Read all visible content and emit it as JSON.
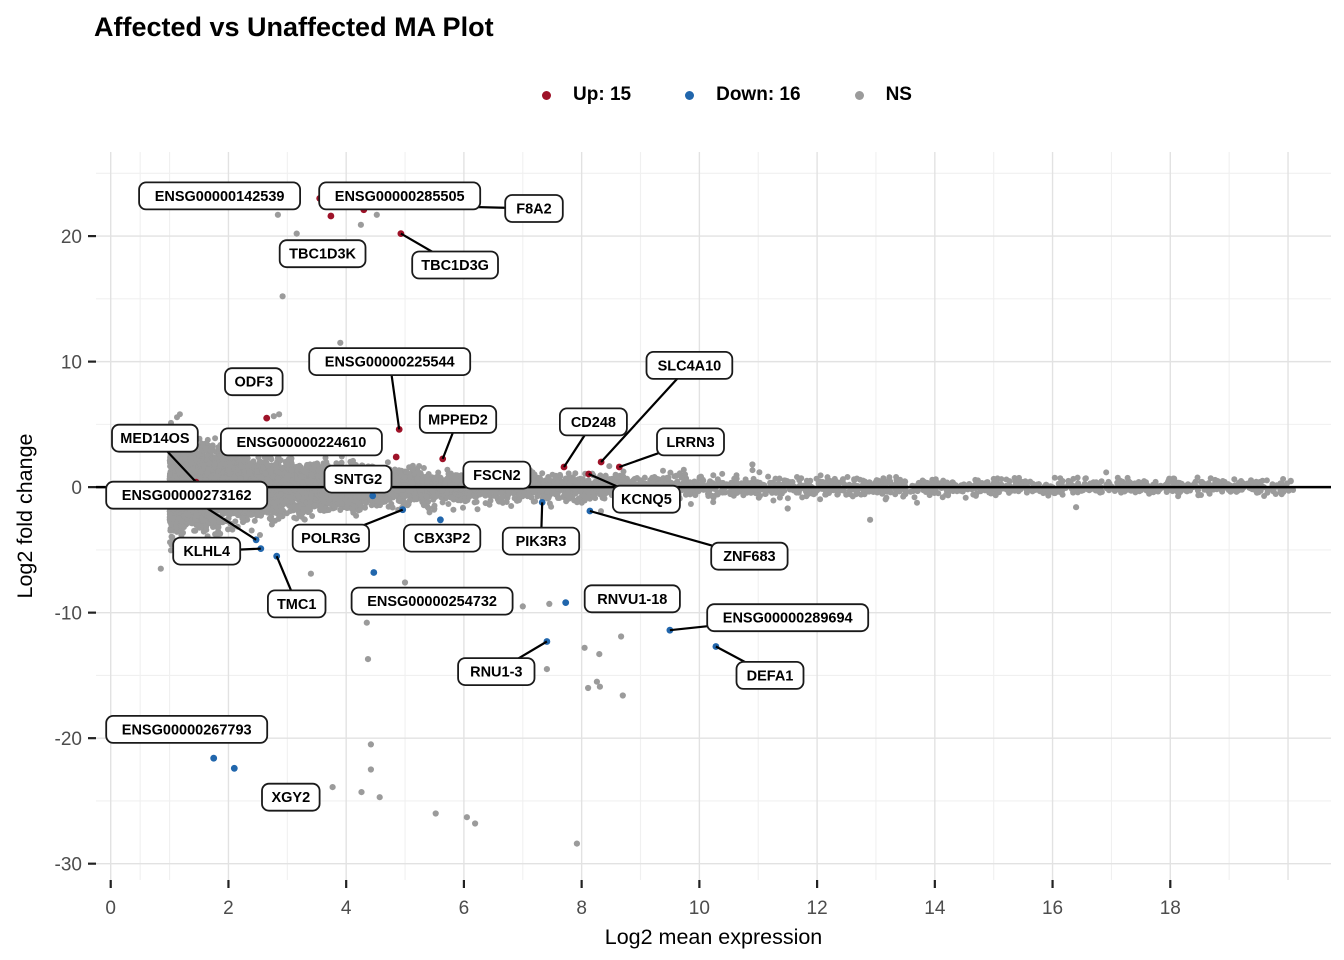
{
  "title": "Affected vs Unaffected MA Plot",
  "legend": {
    "items": [
      {
        "label": "Up: 15",
        "color": "#9E1228"
      },
      {
        "label": "Down: 16",
        "color": "#2166AC"
      },
      {
        "label": "NS",
        "color": "#9B9B9B"
      }
    ]
  },
  "chart_data": {
    "type": "scatter",
    "title": "Affected vs Unaffected MA Plot",
    "xlabel": "Log2 mean expression",
    "ylabel": "Log2 fold change",
    "x_ticks": [
      0,
      2,
      4,
      6,
      8,
      10,
      12,
      14,
      16,
      18
    ],
    "y_ticks": [
      -30,
      -20,
      -10,
      0,
      10,
      20
    ],
    "x_range": [
      -0.25,
      20.73
    ],
    "y_range": [
      -31.3,
      26.7
    ],
    "grid_on": true,
    "legend_position": "top",
    "zero_line_y": 0,
    "point_colors": {
      "up": "#9E1228",
      "down": "#2166AC",
      "ns": "#9B9B9B"
    },
    "labeled_genes": [
      {
        "name": "ENSG00000142539",
        "x": 3.55,
        "y": 23.0,
        "status": "up",
        "label_x": 1.85,
        "label_y": 23.2,
        "leader": false
      },
      {
        "name": "ENSG00000285505",
        "x": 4.3,
        "y": 22.1,
        "status": "up",
        "label_x": 4.91,
        "label_y": 23.2,
        "leader": false
      },
      {
        "name": "F8A2",
        "x": 5.0,
        "y": 22.45,
        "status": "up",
        "label_x": 7.19,
        "label_y": 22.2,
        "leader": true
      },
      {
        "name": "TBC1D3K",
        "x": 3.74,
        "y": 21.6,
        "status": "up",
        "label_x": 3.6,
        "label_y": 18.6,
        "leader": false
      },
      {
        "name": "TBC1D3G",
        "x": 4.93,
        "y": 20.2,
        "status": "up",
        "label_x": 5.85,
        "label_y": 17.7,
        "leader": true
      },
      {
        "name": "ENSG00000225544",
        "x": 4.9,
        "y": 4.6,
        "status": "up",
        "label_x": 4.74,
        "label_y": 10.0,
        "leader": true
      },
      {
        "name": "ODF3",
        "x": 2.65,
        "y": 5.5,
        "status": "up",
        "label_x": 2.43,
        "label_y": 8.4,
        "leader": false
      },
      {
        "name": "MPPED2",
        "x": 5.64,
        "y": 2.25,
        "status": "up",
        "label_x": 5.9,
        "label_y": 5.4,
        "leader": true
      },
      {
        "name": "SLC4A10",
        "x": 8.33,
        "y": 2.0,
        "status": "up",
        "label_x": 9.83,
        "label_y": 9.7,
        "leader": true
      },
      {
        "name": "CD248",
        "x": 7.7,
        "y": 1.6,
        "status": "up",
        "label_x": 8.2,
        "label_y": 5.2,
        "leader": true
      },
      {
        "name": "LRRN3",
        "x": 8.64,
        "y": 1.6,
        "status": "up",
        "label_x": 9.85,
        "label_y": 3.6,
        "leader": true
      },
      {
        "name": "ENSG00000224610",
        "x": 4.85,
        "y": 2.4,
        "status": "up",
        "label_x": 3.24,
        "label_y": 3.6,
        "leader": false
      },
      {
        "name": "MED14OS",
        "x": 1.45,
        "y": 0.4,
        "status": "up",
        "label_x": 0.75,
        "label_y": 3.9,
        "leader": true
      },
      {
        "name": "FSCN2",
        "x": 6.3,
        "y": 0.8,
        "status": "up",
        "label_x": 6.56,
        "label_y": 0.96,
        "leader": false
      },
      {
        "name": "KCNQ5",
        "x": 8.12,
        "y": 1.05,
        "status": "up",
        "label_x": 9.1,
        "label_y": -0.96,
        "leader": true
      },
      {
        "name": "SNTG2",
        "x": 4.45,
        "y": -0.7,
        "status": "down",
        "label_x": 4.2,
        "label_y": 0.64,
        "leader": false
      },
      {
        "name": "ENSG00000273162",
        "x": 2.47,
        "y": -4.2,
        "status": "down",
        "label_x": 1.29,
        "label_y": -0.64,
        "leader": true
      },
      {
        "name": "KLHL4",
        "x": 2.55,
        "y": -4.9,
        "status": "down",
        "label_x": 1.63,
        "label_y": -5.1,
        "leader": true
      },
      {
        "name": "TMC1",
        "x": 2.82,
        "y": -5.5,
        "status": "down",
        "label_x": 3.16,
        "label_y": -9.3,
        "leader": true
      },
      {
        "name": "POLR3G",
        "x": 4.96,
        "y": -1.8,
        "status": "down",
        "label_x": 3.74,
        "label_y": -4.06,
        "leader": true
      },
      {
        "name": "CBX3P2",
        "x": 5.6,
        "y": -2.6,
        "status": "down",
        "label_x": 5.63,
        "label_y": -4.06,
        "leader": false
      },
      {
        "name": "PIK3R3",
        "x": 7.33,
        "y": -1.22,
        "status": "down",
        "label_x": 7.31,
        "label_y": -4.3,
        "leader": true
      },
      {
        "name": "ZNF683",
        "x": 8.14,
        "y": -1.9,
        "status": "down",
        "label_x": 10.85,
        "label_y": -5.5,
        "leader": true
      },
      {
        "name": "ENSG00000254732",
        "x": 4.47,
        "y": -6.8,
        "status": "down",
        "label_x": 5.46,
        "label_y": -9.08,
        "leader": false
      },
      {
        "name": "RNVU1-18",
        "x": 7.73,
        "y": -9.2,
        "status": "down",
        "label_x": 8.86,
        "label_y": -8.9,
        "leader": false
      },
      {
        "name": "ENSG00000289694",
        "x": 9.5,
        "y": -11.4,
        "status": "down",
        "label_x": 11.5,
        "label_y": -10.4,
        "leader": true
      },
      {
        "name": "RNU1-3",
        "x": 7.41,
        "y": -12.3,
        "status": "down",
        "label_x": 6.55,
        "label_y": -14.7,
        "leader": true
      },
      {
        "name": "DEFA1",
        "x": 10.28,
        "y": -12.7,
        "status": "down",
        "label_x": 11.2,
        "label_y": -15.0,
        "leader": true
      },
      {
        "name": "ENSG00000267793",
        "x": 1.75,
        "y": -21.6,
        "status": "down",
        "label_x": 1.29,
        "label_y": -19.3,
        "leader": false
      },
      {
        "name": "XGY2",
        "x": 2.1,
        "y": -22.4,
        "status": "down",
        "label_x": 3.06,
        "label_y": -24.7,
        "leader": false
      }
    ],
    "gray_outliers": [
      [
        2.84,
        21.7
      ],
      [
        4.52,
        21.7
      ],
      [
        4.25,
        20.9
      ],
      [
        3.16,
        20.2
      ],
      [
        2.92,
        15.2
      ],
      [
        3.9,
        11.5
      ],
      [
        2.77,
        5.65
      ],
      [
        2.86,
        5.8
      ],
      [
        10.9,
        1.8
      ],
      [
        11.5,
        -1.7
      ],
      [
        12.9,
        -2.6
      ],
      [
        16.4,
        -1.6
      ],
      [
        0.85,
        -6.5
      ],
      [
        3.4,
        -6.9
      ],
      [
        5.0,
        -7.6
      ],
      [
        5.45,
        -8.3
      ],
      [
        4.35,
        -10.8
      ],
      [
        4.37,
        -13.7
      ],
      [
        7.0,
        -9.5
      ],
      [
        7.45,
        -9.3
      ],
      [
        8.67,
        -11.9
      ],
      [
        8.05,
        -12.8
      ],
      [
        8.3,
        -13.3
      ],
      [
        7.41,
        -14.5
      ],
      [
        8.11,
        -16.0
      ],
      [
        8.26,
        -15.5
      ],
      [
        8.31,
        -15.9
      ],
      [
        8.7,
        -16.6
      ],
      [
        4.42,
        -20.5
      ],
      [
        4.42,
        -22.5
      ],
      [
        3.77,
        -23.9
      ],
      [
        4.26,
        -24.3
      ],
      [
        4.57,
        -24.7
      ],
      [
        5.52,
        -26.0
      ],
      [
        6.05,
        -26.3
      ],
      [
        6.19,
        -26.8
      ],
      [
        7.92,
        -28.4
      ]
    ],
    "ns_cloud": {
      "count": 9000,
      "seed": 123,
      "x_min": 1.0,
      "x_max": 20.1
    }
  }
}
